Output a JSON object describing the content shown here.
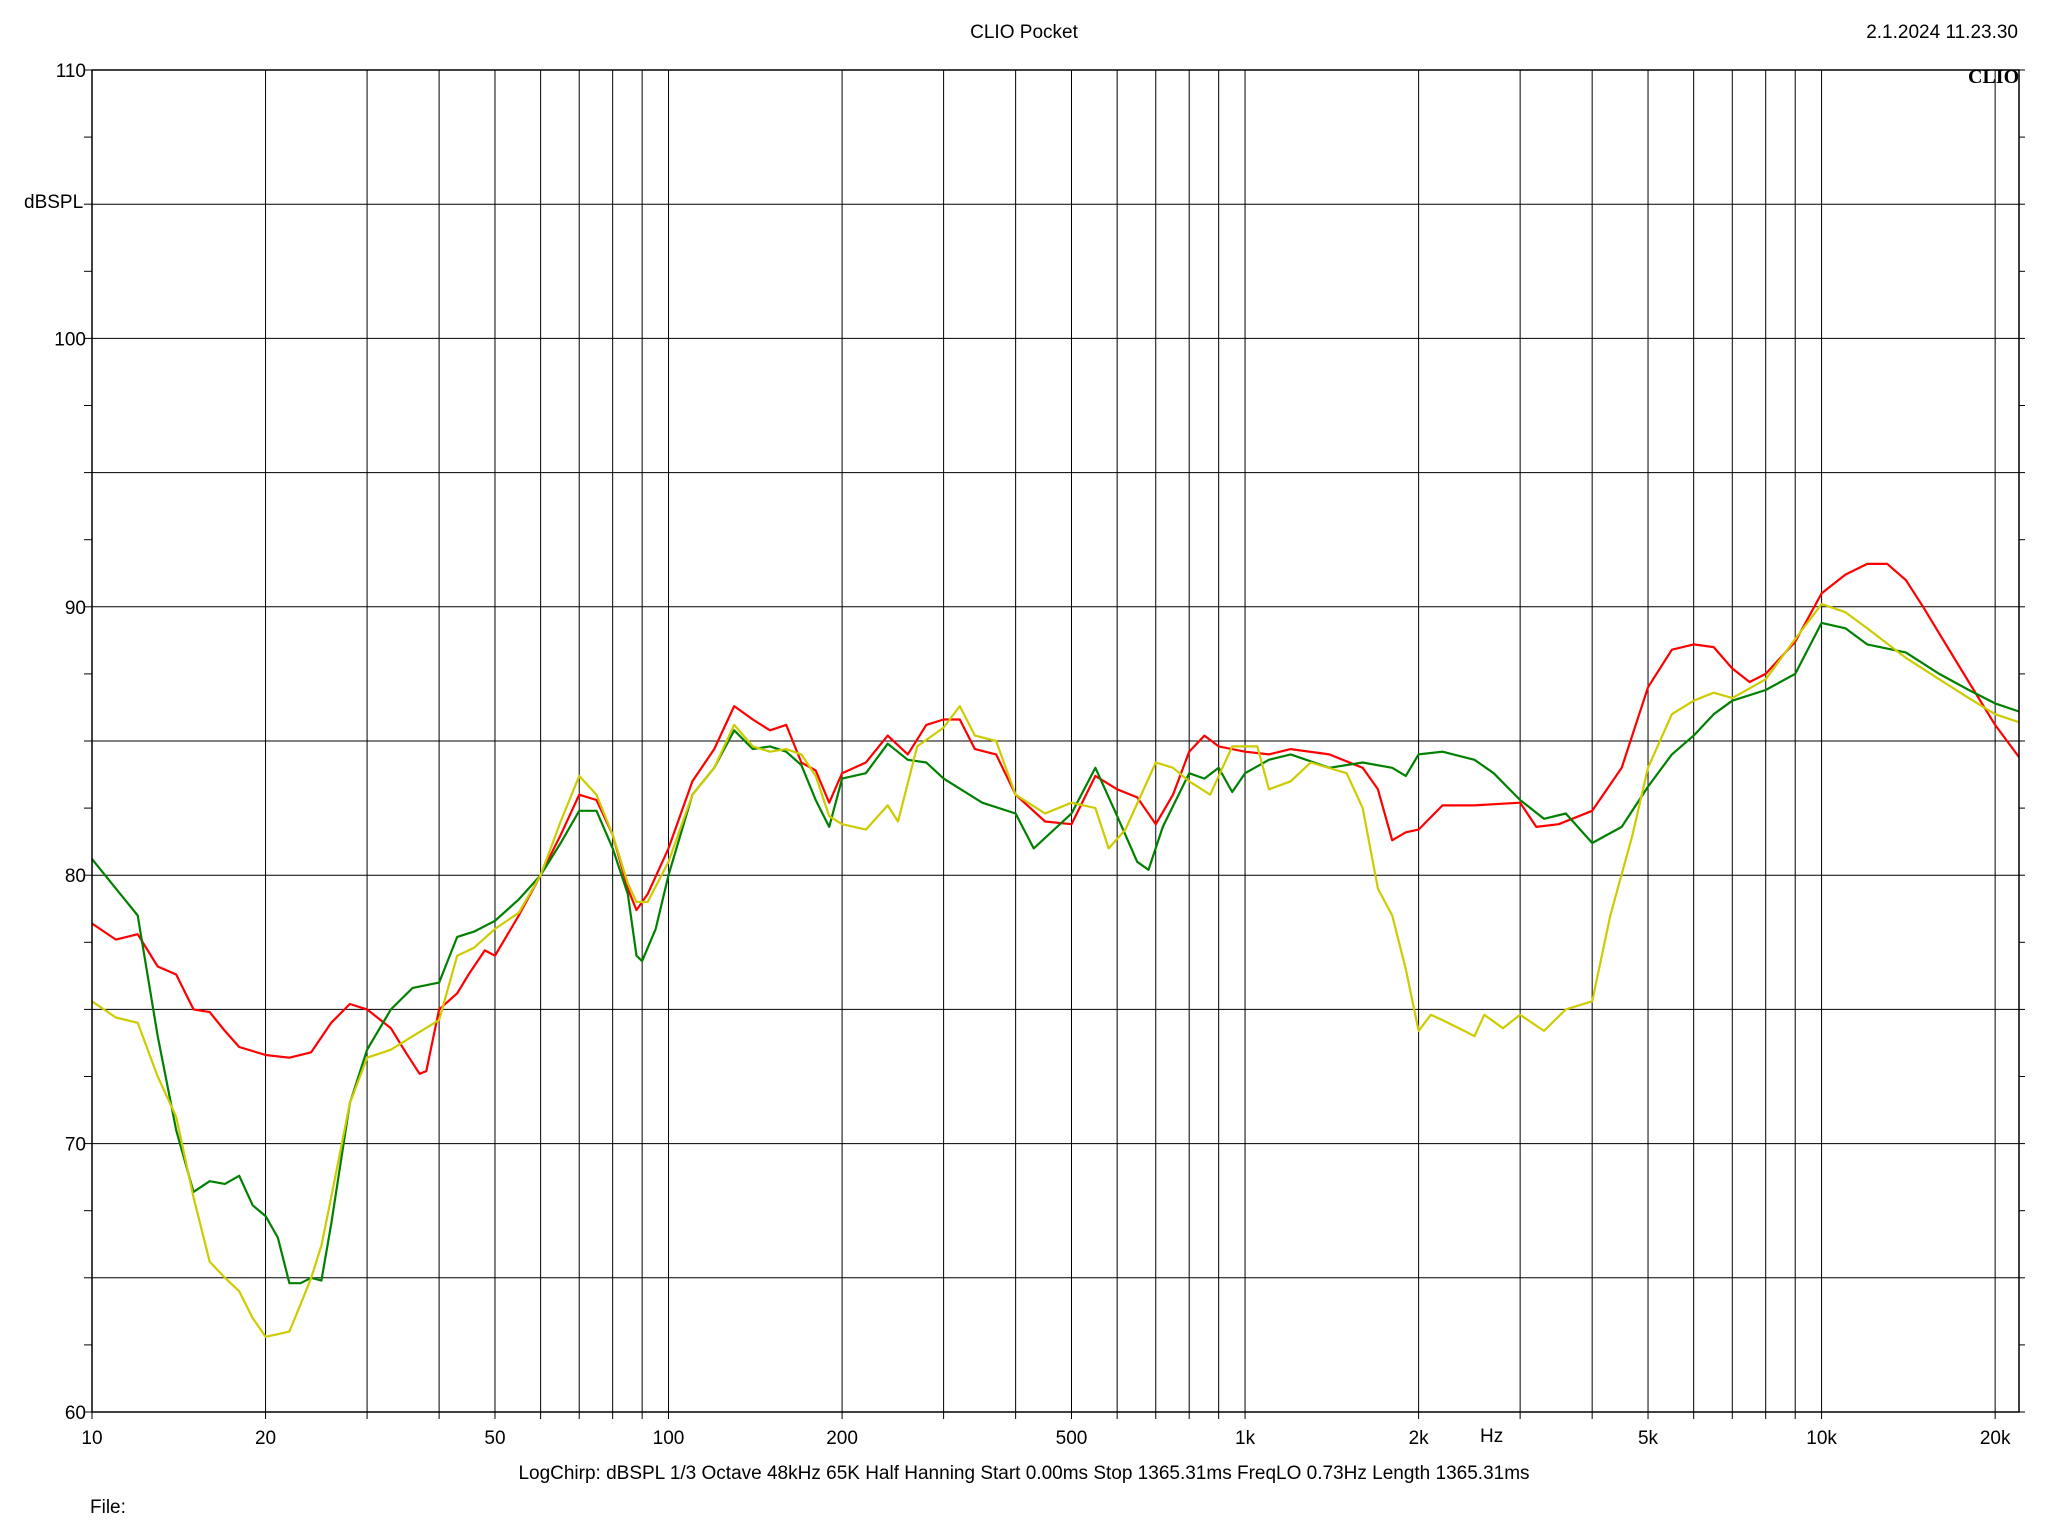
{
  "header": {
    "title": "CLIO Pocket",
    "timestamp": "2.1.2024 11.23.30",
    "brand": "CLIO"
  },
  "footer": {
    "params": "LogChirp:  dBSPL   1/3 Octave   48kHz   65K   Half Hanning   Start 0.00ms     Stop 1365.31ms     FreqLO 0.73Hz     Length 1365.31ms",
    "file_label": "File:"
  },
  "chart_data": {
    "type": "line",
    "title": "CLIO Pocket",
    "xlabel": "Hz",
    "ylabel": "dBSPL",
    "x_scale": "log",
    "xlim": [
      10,
      22000
    ],
    "ylim": [
      60,
      110
    ],
    "grid": true,
    "x_major_lines": [
      10,
      20,
      30,
      40,
      50,
      60,
      70,
      80,
      90,
      100,
      200,
      300,
      400,
      500,
      600,
      700,
      800,
      900,
      1000,
      2000,
      3000,
      4000,
      5000,
      6000,
      7000,
      8000,
      9000,
      10000,
      20000
    ],
    "x_ticks": [
      {
        "value": 10,
        "label": "10"
      },
      {
        "value": 20,
        "label": "20"
      },
      {
        "value": 50,
        "label": "50"
      },
      {
        "value": 100,
        "label": "100"
      },
      {
        "value": 200,
        "label": "200"
      },
      {
        "value": 500,
        "label": "500"
      },
      {
        "value": 1000,
        "label": "1k"
      },
      {
        "value": 2000,
        "label": "2k"
      },
      {
        "value": 5000,
        "label": "5k"
      },
      {
        "value": 10000,
        "label": "10k"
      },
      {
        "value": 20000,
        "label": "20k"
      }
    ],
    "y_ticks": [
      {
        "value": 110,
        "label": "110"
      },
      {
        "value": 100,
        "label": "100"
      },
      {
        "value": 90,
        "label": "90"
      },
      {
        "value": 80,
        "label": "80"
      },
      {
        "value": 70,
        "label": "70"
      },
      {
        "value": 60,
        "label": "60"
      }
    ],
    "y_grid_step": 5,
    "series": [
      {
        "color": "#ff0000",
        "points": [
          [
            10,
            78.2
          ],
          [
            11,
            77.6
          ],
          [
            12,
            77.8
          ],
          [
            13,
            76.6
          ],
          [
            14,
            76.3
          ],
          [
            15,
            75.0
          ],
          [
            16,
            74.9
          ],
          [
            17,
            74.2
          ],
          [
            18,
            73.6
          ],
          [
            20,
            73.3
          ],
          [
            22,
            73.2
          ],
          [
            24,
            73.4
          ],
          [
            26,
            74.5
          ],
          [
            28,
            75.2
          ],
          [
            30,
            75.0
          ],
          [
            33,
            74.3
          ],
          [
            35,
            73.4
          ],
          [
            37,
            72.6
          ],
          [
            38,
            72.7
          ],
          [
            40,
            75.0
          ],
          [
            43,
            75.6
          ],
          [
            45,
            76.3
          ],
          [
            48,
            77.2
          ],
          [
            50,
            77.0
          ],
          [
            55,
            78.5
          ],
          [
            60,
            80.0
          ],
          [
            65,
            81.5
          ],
          [
            70,
            83.0
          ],
          [
            75,
            82.8
          ],
          [
            80,
            81.5
          ],
          [
            85,
            79.5
          ],
          [
            88,
            78.7
          ],
          [
            92,
            79.3
          ],
          [
            100,
            81.0
          ],
          [
            110,
            83.5
          ],
          [
            120,
            84.7
          ],
          [
            130,
            86.3
          ],
          [
            140,
            85.8
          ],
          [
            150,
            85.4
          ],
          [
            160,
            85.6
          ],
          [
            170,
            84.2
          ],
          [
            180,
            83.9
          ],
          [
            190,
            82.7
          ],
          [
            200,
            83.8
          ],
          [
            220,
            84.2
          ],
          [
            240,
            85.2
          ],
          [
            260,
            84.5
          ],
          [
            280,
            85.6
          ],
          [
            300,
            85.8
          ],
          [
            320,
            85.8
          ],
          [
            340,
            84.7
          ],
          [
            370,
            84.5
          ],
          [
            400,
            83.0
          ],
          [
            450,
            82.0
          ],
          [
            500,
            81.9
          ],
          [
            550,
            83.7
          ],
          [
            600,
            83.2
          ],
          [
            650,
            82.9
          ],
          [
            700,
            81.9
          ],
          [
            750,
            83.0
          ],
          [
            800,
            84.6
          ],
          [
            850,
            85.2
          ],
          [
            900,
            84.8
          ],
          [
            1000,
            84.6
          ],
          [
            1100,
            84.5
          ],
          [
            1200,
            84.7
          ],
          [
            1400,
            84.5
          ],
          [
            1600,
            84.0
          ],
          [
            1700,
            83.2
          ],
          [
            1800,
            81.3
          ],
          [
            1900,
            81.6
          ],
          [
            2000,
            81.7
          ],
          [
            2200,
            82.6
          ],
          [
            2500,
            82.6
          ],
          [
            3000,
            82.7
          ],
          [
            3200,
            81.8
          ],
          [
            3500,
            81.9
          ],
          [
            4000,
            82.4
          ],
          [
            4500,
            84.0
          ],
          [
            5000,
            87.0
          ],
          [
            5500,
            88.4
          ],
          [
            6000,
            88.6
          ],
          [
            6500,
            88.5
          ],
          [
            7000,
            87.7
          ],
          [
            7500,
            87.2
          ],
          [
            8000,
            87.5
          ],
          [
            9000,
            88.7
          ],
          [
            10000,
            90.5
          ],
          [
            11000,
            91.2
          ],
          [
            12000,
            91.6
          ],
          [
            13000,
            91.6
          ],
          [
            14000,
            91.0
          ],
          [
            15000,
            90.0
          ],
          [
            16000,
            89.0
          ],
          [
            18000,
            87.2
          ],
          [
            20000,
            85.6
          ],
          [
            22000,
            84.4
          ]
        ]
      },
      {
        "color": "#008000",
        "points": [
          [
            10,
            80.6
          ],
          [
            11,
            79.5
          ],
          [
            12,
            78.5
          ],
          [
            13,
            74.0
          ],
          [
            14,
            70.5
          ],
          [
            15,
            68.2
          ],
          [
            16,
            68.6
          ],
          [
            17,
            68.5
          ],
          [
            18,
            68.8
          ],
          [
            19,
            67.7
          ],
          [
            20,
            67.3
          ],
          [
            21,
            66.5
          ],
          [
            22,
            64.8
          ],
          [
            23,
            64.8
          ],
          [
            24,
            65.0
          ],
          [
            25,
            64.9
          ],
          [
            26,
            67.0
          ],
          [
            28,
            71.5
          ],
          [
            30,
            73.5
          ],
          [
            33,
            75.0
          ],
          [
            36,
            75.8
          ],
          [
            40,
            76.0
          ],
          [
            43,
            77.7
          ],
          [
            46,
            77.9
          ],
          [
            50,
            78.3
          ],
          [
            55,
            79.1
          ],
          [
            60,
            80.0
          ],
          [
            65,
            81.2
          ],
          [
            70,
            82.4
          ],
          [
            75,
            82.4
          ],
          [
            80,
            81.0
          ],
          [
            85,
            79.3
          ],
          [
            88,
            77.0
          ],
          [
            90,
            76.8
          ],
          [
            95,
            78.0
          ],
          [
            100,
            80.0
          ],
          [
            110,
            83.0
          ],
          [
            120,
            84.0
          ],
          [
            130,
            85.4
          ],
          [
            140,
            84.7
          ],
          [
            150,
            84.8
          ],
          [
            160,
            84.6
          ],
          [
            170,
            84.1
          ],
          [
            180,
            82.8
          ],
          [
            190,
            81.8
          ],
          [
            200,
            83.6
          ],
          [
            220,
            83.8
          ],
          [
            240,
            84.9
          ],
          [
            260,
            84.3
          ],
          [
            280,
            84.2
          ],
          [
            300,
            83.6
          ],
          [
            350,
            82.7
          ],
          [
            400,
            82.3
          ],
          [
            430,
            81.0
          ],
          [
            500,
            82.3
          ],
          [
            550,
            84.0
          ],
          [
            600,
            82.2
          ],
          [
            650,
            80.5
          ],
          [
            680,
            80.2
          ],
          [
            720,
            81.8
          ],
          [
            800,
            83.8
          ],
          [
            850,
            83.6
          ],
          [
            900,
            84.0
          ],
          [
            950,
            83.1
          ],
          [
            1000,
            83.8
          ],
          [
            1100,
            84.3
          ],
          [
            1200,
            84.5
          ],
          [
            1400,
            84.0
          ],
          [
            1600,
            84.2
          ],
          [
            1800,
            84.0
          ],
          [
            1900,
            83.7
          ],
          [
            2000,
            84.5
          ],
          [
            2200,
            84.6
          ],
          [
            2500,
            84.3
          ],
          [
            2700,
            83.8
          ],
          [
            3000,
            82.8
          ],
          [
            3300,
            82.1
          ],
          [
            3600,
            82.3
          ],
          [
            4000,
            81.2
          ],
          [
            4500,
            81.8
          ],
          [
            5000,
            83.3
          ],
          [
            5500,
            84.5
          ],
          [
            6000,
            85.2
          ],
          [
            6500,
            86.0
          ],
          [
            7000,
            86.5
          ],
          [
            8000,
            86.9
          ],
          [
            9000,
            87.5
          ],
          [
            10000,
            89.4
          ],
          [
            11000,
            89.2
          ],
          [
            12000,
            88.6
          ],
          [
            14000,
            88.3
          ],
          [
            16000,
            87.5
          ],
          [
            18000,
            86.9
          ],
          [
            20000,
            86.4
          ],
          [
            22000,
            86.1
          ]
        ]
      },
      {
        "color": "#cccc00",
        "points": [
          [
            10,
            75.3
          ],
          [
            11,
            74.7
          ],
          [
            12,
            74.5
          ],
          [
            13,
            72.5
          ],
          [
            14,
            71.0
          ],
          [
            15,
            68.0
          ],
          [
            16,
            65.6
          ],
          [
            17,
            65.0
          ],
          [
            18,
            64.5
          ],
          [
            19,
            63.5
          ],
          [
            20,
            62.8
          ],
          [
            21,
            62.9
          ],
          [
            22,
            63.0
          ],
          [
            23,
            64.0
          ],
          [
            24,
            65.0
          ],
          [
            25,
            66.2
          ],
          [
            26,
            68.0
          ],
          [
            28,
            71.5
          ],
          [
            30,
            73.2
          ],
          [
            33,
            73.5
          ],
          [
            36,
            74.0
          ],
          [
            40,
            74.6
          ],
          [
            43,
            77.0
          ],
          [
            46,
            77.3
          ],
          [
            50,
            78.0
          ],
          [
            55,
            78.6
          ],
          [
            60,
            80.0
          ],
          [
            65,
            82.0
          ],
          [
            70,
            83.7
          ],
          [
            75,
            83.0
          ],
          [
            80,
            81.5
          ],
          [
            85,
            79.7
          ],
          [
            88,
            79.0
          ],
          [
            92,
            79.0
          ],
          [
            100,
            80.5
          ],
          [
            110,
            83.0
          ],
          [
            120,
            84.0
          ],
          [
            130,
            85.6
          ],
          [
            140,
            84.8
          ],
          [
            150,
            84.6
          ],
          [
            160,
            84.7
          ],
          [
            170,
            84.5
          ],
          [
            180,
            83.7
          ],
          [
            190,
            82.2
          ],
          [
            200,
            81.9
          ],
          [
            220,
            81.7
          ],
          [
            240,
            82.6
          ],
          [
            250,
            82.0
          ],
          [
            270,
            84.8
          ],
          [
            300,
            85.5
          ],
          [
            320,
            86.3
          ],
          [
            340,
            85.2
          ],
          [
            370,
            85.0
          ],
          [
            400,
            83.0
          ],
          [
            450,
            82.3
          ],
          [
            500,
            82.7
          ],
          [
            550,
            82.5
          ],
          [
            580,
            81.0
          ],
          [
            620,
            81.7
          ],
          [
            700,
            84.2
          ],
          [
            750,
            84.0
          ],
          [
            800,
            83.5
          ],
          [
            870,
            83.0
          ],
          [
            950,
            84.8
          ],
          [
            1050,
            84.8
          ],
          [
            1100,
            83.2
          ],
          [
            1200,
            83.5
          ],
          [
            1300,
            84.2
          ],
          [
            1500,
            83.8
          ],
          [
            1600,
            82.5
          ],
          [
            1700,
            79.5
          ],
          [
            1800,
            78.5
          ],
          [
            1900,
            76.5
          ],
          [
            2000,
            74.2
          ],
          [
            2100,
            74.8
          ],
          [
            2200,
            74.6
          ],
          [
            2400,
            74.2
          ],
          [
            2500,
            74.0
          ],
          [
            2600,
            74.8
          ],
          [
            2800,
            74.3
          ],
          [
            3000,
            74.8
          ],
          [
            3300,
            74.2
          ],
          [
            3600,
            75.0
          ],
          [
            4000,
            75.3
          ],
          [
            4300,
            78.5
          ],
          [
            4700,
            81.5
          ],
          [
            5000,
            84.0
          ],
          [
            5500,
            86.0
          ],
          [
            6000,
            86.5
          ],
          [
            6500,
            86.8
          ],
          [
            7000,
            86.6
          ],
          [
            8000,
            87.3
          ],
          [
            9000,
            88.8
          ],
          [
            10000,
            90.1
          ],
          [
            11000,
            89.8
          ],
          [
            12000,
            89.2
          ],
          [
            14000,
            88.1
          ],
          [
            16000,
            87.3
          ],
          [
            18000,
            86.6
          ],
          [
            20000,
            86.0
          ],
          [
            22000,
            85.7
          ]
        ]
      }
    ]
  }
}
